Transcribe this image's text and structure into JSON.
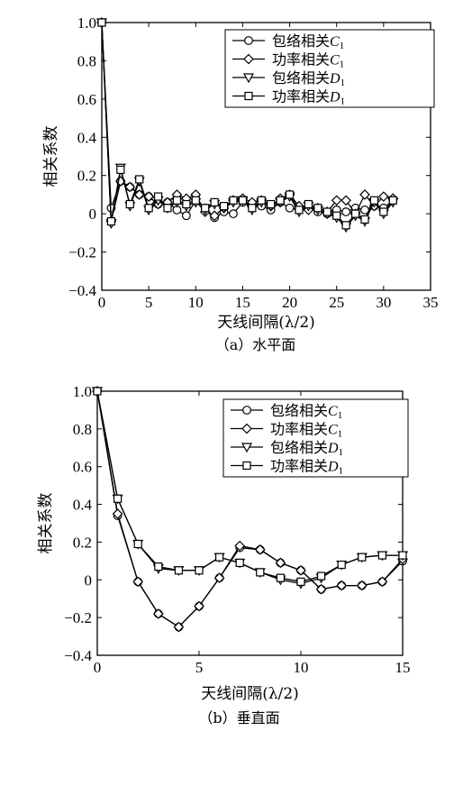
{
  "chart_data": [
    {
      "type": "line",
      "caption": "（a）水平面",
      "xlabel": "天线间隔(λ/2)",
      "ylabel": "相关系数",
      "xlim": [
        0,
        35
      ],
      "ylim": [
        -0.4,
        1.0
      ],
      "xticks": [
        0,
        5,
        10,
        15,
        20,
        25,
        30,
        35
      ],
      "yticks": [
        -0.4,
        -0.2,
        0,
        0.2,
        0.4,
        0.6,
        0.8,
        1.0
      ],
      "ytick_labels": [
        "−0.4",
        "−0.2",
        "0",
        "0.2",
        "0.4",
        "0.6",
        "0.8",
        "1.0"
      ],
      "grid": false,
      "legend_position": "top-right",
      "series": [
        {
          "name": "包络相关C1",
          "legend_main": "包络相关",
          "legend_sym": "C",
          "legend_sub": "1",
          "marker": "circle",
          "x": [
            0,
            1,
            2,
            3,
            4,
            5,
            6,
            7,
            8,
            9,
            10,
            11,
            12,
            13,
            14,
            15,
            16,
            17,
            18,
            19,
            20,
            21,
            22,
            23,
            24,
            25,
            26,
            27,
            28,
            29,
            30,
            31
          ],
          "y": [
            1.0,
            0.03,
            0.17,
            0.14,
            0.1,
            0.09,
            0.05,
            0.06,
            0.02,
            -0.01,
            0.07,
            0.03,
            -0.02,
            0.01,
            0.0,
            0.06,
            0.05,
            0.04,
            0.02,
            0.06,
            0.03,
            0.02,
            0.03,
            0.01,
            0.0,
            0.02,
            0.01,
            0.03,
            0.02,
            0.04,
            0.03,
            0.07
          ]
        },
        {
          "name": "功率相关C1",
          "legend_main": "功率相关",
          "legend_sym": "C",
          "legend_sub": "1",
          "marker": "diamond",
          "x": [
            0,
            1,
            2,
            3,
            4,
            5,
            6,
            7,
            8,
            9,
            10,
            11,
            12,
            13,
            14,
            15,
            16,
            17,
            18,
            19,
            20,
            21,
            22,
            23,
            24,
            25,
            26,
            27,
            28,
            29,
            30,
            31
          ],
          "y": [
            1.0,
            -0.04,
            0.17,
            0.14,
            0.1,
            0.09,
            0.05,
            0.06,
            0.1,
            0.08,
            0.1,
            0.01,
            -0.01,
            0.03,
            0.07,
            0.08,
            0.06,
            0.07,
            0.04,
            0.08,
            0.1,
            0.04,
            0.02,
            0.03,
            0.01,
            0.07,
            0.07,
            0.0,
            0.1,
            0.04,
            0.09,
            0.08
          ]
        },
        {
          "name": "包络相关D1",
          "legend_main": "包络相关",
          "legend_sym": "D",
          "legend_sub": "1",
          "marker": "triangle-down",
          "x": [
            0,
            1,
            2,
            3,
            4,
            5,
            6,
            7,
            8,
            9,
            10,
            11,
            12,
            13,
            14,
            15,
            16,
            17,
            18,
            19,
            20,
            21,
            22,
            23,
            24,
            25,
            26,
            27,
            28,
            29,
            30,
            31
          ],
          "y": [
            1.0,
            -0.05,
            0.24,
            0.04,
            0.17,
            0.02,
            0.07,
            0.03,
            0.06,
            0.04,
            0.06,
            0.02,
            0.05,
            0.03,
            0.06,
            0.07,
            0.02,
            0.06,
            0.04,
            0.06,
            0.09,
            0.01,
            0.04,
            0.02,
            0.0,
            -0.02,
            -0.07,
            -0.01,
            -0.04,
            0.06,
            0.0,
            0.06
          ]
        },
        {
          "name": "功率相关D1",
          "legend_main": "功率相关",
          "legend_sym": "D",
          "legend_sub": "1",
          "marker": "square",
          "x": [
            0,
            1,
            2,
            3,
            4,
            5,
            6,
            7,
            8,
            9,
            10,
            11,
            12,
            13,
            14,
            15,
            16,
            17,
            18,
            19,
            20,
            21,
            22,
            23,
            24,
            25,
            26,
            27,
            28,
            29,
            30,
            31
          ],
          "y": [
            1.0,
            -0.04,
            0.23,
            0.05,
            0.18,
            0.03,
            0.09,
            0.03,
            0.07,
            0.05,
            0.07,
            0.03,
            0.06,
            0.04,
            0.07,
            0.07,
            0.03,
            0.07,
            0.05,
            0.07,
            0.1,
            0.02,
            0.05,
            0.03,
            0.01,
            -0.01,
            -0.06,
            0.0,
            -0.03,
            0.07,
            0.01,
            0.07
          ]
        }
      ]
    },
    {
      "type": "line",
      "caption": "（b）垂直面",
      "xlabel": "天线间隔(λ/2)",
      "ylabel": "相关系数",
      "xlim": [
        0,
        15
      ],
      "ylim": [
        -0.4,
        1.0
      ],
      "xticks": [
        0,
        5,
        10,
        15
      ],
      "yticks": [
        -0.4,
        -0.2,
        0,
        0.2,
        0.4,
        0.6,
        0.8,
        1.0
      ],
      "ytick_labels": [
        "−0.4",
        "−0.2",
        "0",
        "0.2",
        "0.4",
        "0.6",
        "0.8",
        "1.0"
      ],
      "grid": false,
      "legend_position": "top-right",
      "series": [
        {
          "name": "包络相关C1",
          "legend_main": "包络相关",
          "legend_sym": "C",
          "legend_sub": "1",
          "marker": "circle",
          "x": [
            0,
            1,
            2,
            3,
            4,
            5,
            6,
            7,
            8,
            9,
            10,
            11,
            12,
            13,
            14,
            15
          ],
          "y": [
            1.0,
            0.34,
            -0.01,
            -0.18,
            -0.25,
            -0.14,
            0.01,
            0.17,
            0.16,
            0.09,
            0.05,
            -0.05,
            -0.03,
            -0.03,
            -0.01,
            0.1
          ]
        },
        {
          "name": "功率相关C1",
          "legend_main": "功率相关",
          "legend_sym": "C",
          "legend_sub": "1",
          "marker": "diamond",
          "x": [
            0,
            1,
            2,
            3,
            4,
            5,
            6,
            7,
            8,
            9,
            10,
            11,
            12,
            13,
            14,
            15
          ],
          "y": [
            1.0,
            0.35,
            -0.01,
            -0.18,
            -0.25,
            -0.14,
            0.01,
            0.18,
            0.16,
            0.09,
            0.05,
            -0.05,
            -0.03,
            -0.03,
            -0.01,
            0.11
          ]
        },
        {
          "name": "包络相关D1",
          "legend_main": "包络相关",
          "legend_sym": "D",
          "legend_sub": "1",
          "marker": "triangle-down",
          "x": [
            0,
            1,
            2,
            3,
            4,
            5,
            6,
            7,
            8,
            9,
            10,
            11,
            12,
            13,
            14,
            15
          ],
          "y": [
            1.0,
            0.43,
            0.19,
            0.06,
            0.05,
            0.05,
            0.12,
            0.09,
            0.04,
            0.0,
            -0.02,
            0.01,
            0.08,
            0.12,
            0.13,
            0.13
          ]
        },
        {
          "name": "功率相关D1",
          "legend_main": "功率相关",
          "legend_sym": "D",
          "legend_sub": "1",
          "marker": "square",
          "x": [
            0,
            1,
            2,
            3,
            4,
            5,
            6,
            7,
            8,
            9,
            10,
            11,
            12,
            13,
            14,
            15
          ],
          "y": [
            1.0,
            0.43,
            0.19,
            0.07,
            0.05,
            0.05,
            0.12,
            0.09,
            0.04,
            0.01,
            -0.01,
            0.02,
            0.08,
            0.12,
            0.13,
            0.13
          ]
        }
      ]
    }
  ]
}
